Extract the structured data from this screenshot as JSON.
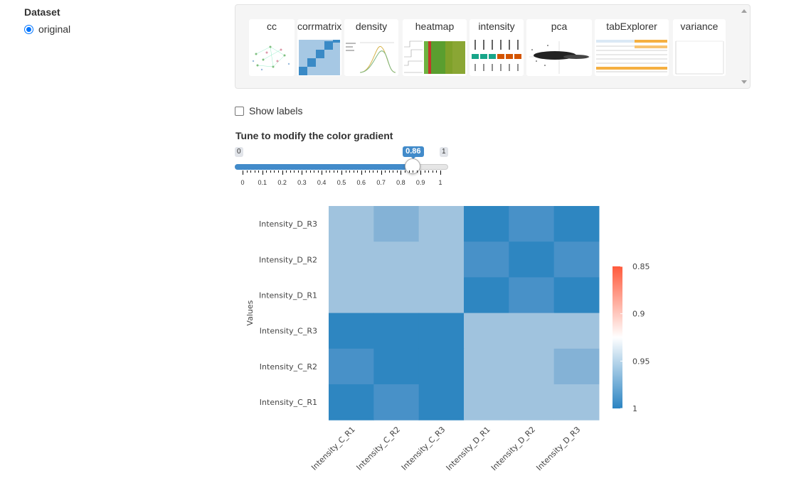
{
  "dataset": {
    "label": "Dataset",
    "option": "original"
  },
  "gallery": {
    "items": [
      "cc",
      "corrmatrix",
      "density",
      "heatmap",
      "intensity",
      "pca",
      "tabExplorer",
      "variance"
    ]
  },
  "show_labels": {
    "label": "Show labels",
    "checked": false
  },
  "slider": {
    "title": "Tune to modify the color gradient",
    "min_label": "0",
    "max_label": "1",
    "value": 0.86,
    "value_label": "0.86",
    "min": 0,
    "max": 1,
    "tick_labels": [
      "0",
      "0.1",
      "0.2",
      "0.3",
      "0.4",
      "0.5",
      "0.6",
      "0.7",
      "0.8",
      "0.9",
      "1"
    ]
  },
  "chart_data": {
    "type": "heatmap",
    "ylabel": "Values",
    "x_categories": [
      "Intensity_C_R1",
      "Intensity_C_R2",
      "Intensity_C_R3",
      "Intensity_D_R1",
      "Intensity_D_R2",
      "Intensity_D_R3"
    ],
    "y_categories": [
      "Intensity_D_R3",
      "Intensity_D_R2",
      "Intensity_D_R1",
      "Intensity_C_R3",
      "Intensity_C_R2",
      "Intensity_C_R1"
    ],
    "values": [
      [
        0.962,
        0.978,
        0.962,
        1.0,
        0.99,
        1.0
      ],
      [
        0.962,
        0.962,
        0.962,
        0.99,
        1.0,
        0.99
      ],
      [
        0.962,
        0.962,
        0.962,
        1.0,
        0.99,
        1.0
      ],
      [
        1.0,
        1.0,
        1.0,
        0.962,
        0.962,
        0.962
      ],
      [
        0.99,
        1.0,
        1.0,
        0.962,
        0.962,
        0.978
      ],
      [
        1.0,
        0.99,
        1.0,
        0.962,
        0.962,
        0.962
      ]
    ],
    "colorbar": {
      "ticks": [
        "0.85",
        "0.9",
        "0.95",
        "1"
      ],
      "min": 0.85,
      "max": 1,
      "colors": {
        "low": "#ff5a3c",
        "mid": "#ffffff",
        "high": "#2b84c2"
      }
    },
    "cell_colors": {
      "light": "#a0c3de",
      "medium": "#84b2d6",
      "dark_medium": "#4891c8",
      "dark": "#2e86c1"
    }
  }
}
